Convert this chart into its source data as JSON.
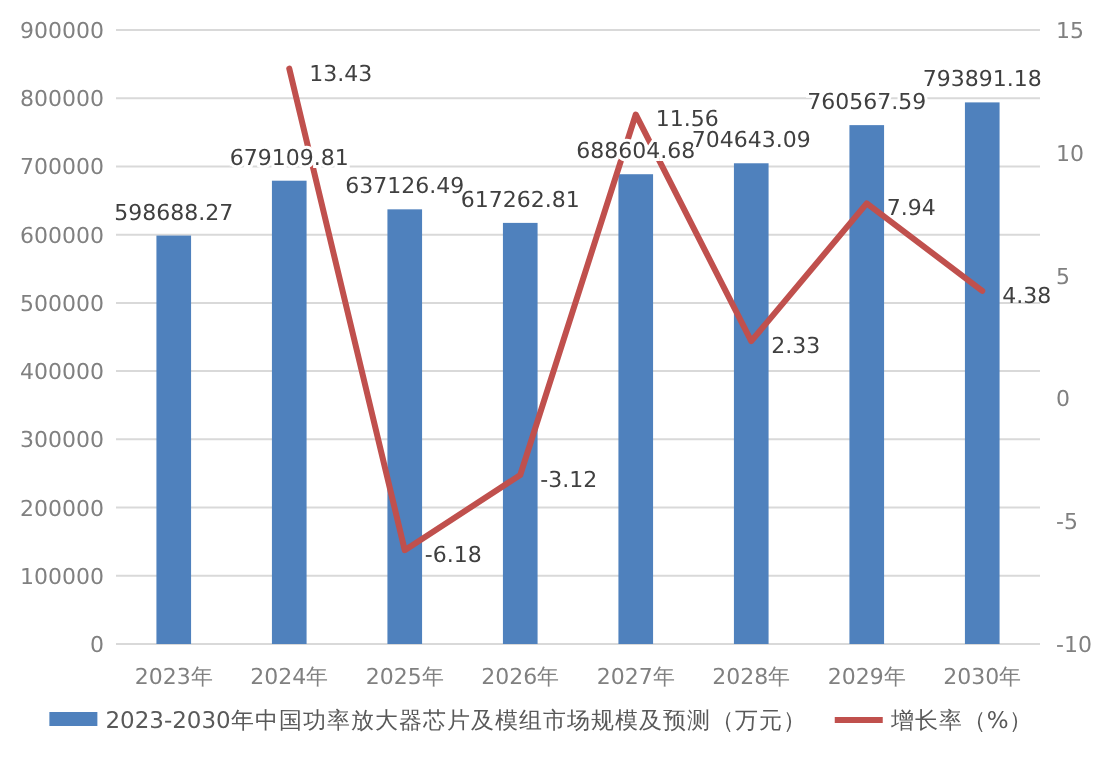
{
  "chart_data": {
    "type": "bar",
    "categories": [
      "2023年",
      "2024年",
      "2025年",
      "2026年",
      "2027年",
      "2028年",
      "2029年",
      "2030年"
    ],
    "series": [
      {
        "name": "2023-2030年中国功率放大器芯片及模组市场规模及预测（万元）",
        "color": "#4f81bd",
        "values": [
          598688.27,
          679109.81,
          637126.49,
          617262.81,
          688604.68,
          704643.09,
          760567.59,
          793891.18
        ]
      },
      {
        "name": "增长率（%）",
        "type": "line",
        "axis": "y2",
        "color": "#c0504d",
        "values": [
          null,
          13.43,
          -6.18,
          -3.12,
          11.56,
          2.33,
          7.94,
          4.38
        ]
      }
    ],
    "ylim": [
      0,
      900000
    ],
    "yticks": [
      0,
      100000,
      200000,
      300000,
      400000,
      500000,
      600000,
      700000,
      800000,
      900000
    ],
    "y2lim": [
      -10,
      15
    ],
    "y2ticks": [
      -10,
      -5,
      0,
      5,
      10,
      15
    ],
    "grid": "y",
    "legend": "bottom",
    "data_labels": true,
    "marker": "none"
  }
}
